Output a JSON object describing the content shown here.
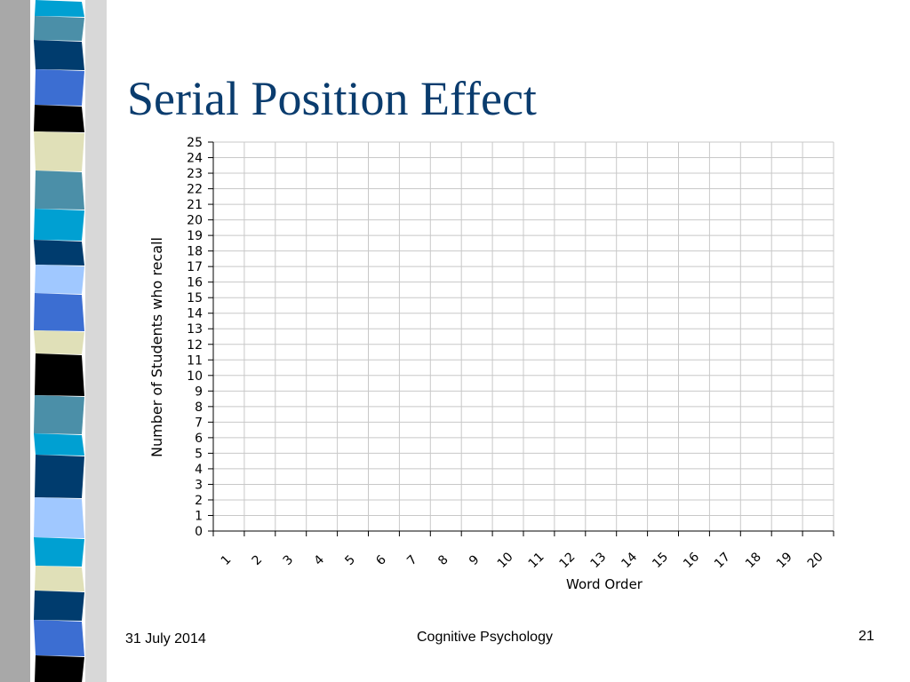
{
  "slide": {
    "title": "Serial Position Effect",
    "footer": {
      "date": "31 July 2014",
      "center": "Cognitive Psychology",
      "page_number": "21"
    }
  },
  "colors": {
    "title": "#0a3c6e",
    "grid": "#c8c8c8",
    "strip": [
      "#00a0d2",
      "#4b8fa8",
      "#003c6e",
      "#3c6ed2",
      "#000000",
      "#e0e0b8",
      "#a0c8ff"
    ]
  },
  "chart_data": {
    "type": "line",
    "title": "",
    "xlabel": "Word Order",
    "ylabel": "Number of Students who recall",
    "categories": [
      "1",
      "2",
      "3",
      "4",
      "5",
      "6",
      "7",
      "8",
      "9",
      "10",
      "11",
      "12",
      "13",
      "14",
      "15",
      "16",
      "17",
      "18",
      "19",
      "20"
    ],
    "y_ticks": [
      "0",
      "1",
      "2",
      "3",
      "4",
      "5",
      "6",
      "7",
      "8",
      "9",
      "10",
      "11",
      "12",
      "13",
      "14",
      "15",
      "16",
      "17",
      "18",
      "19",
      "20",
      "21",
      "22",
      "23",
      "24",
      "25"
    ],
    "ylim": [
      0,
      25
    ],
    "grid": true,
    "series": []
  }
}
